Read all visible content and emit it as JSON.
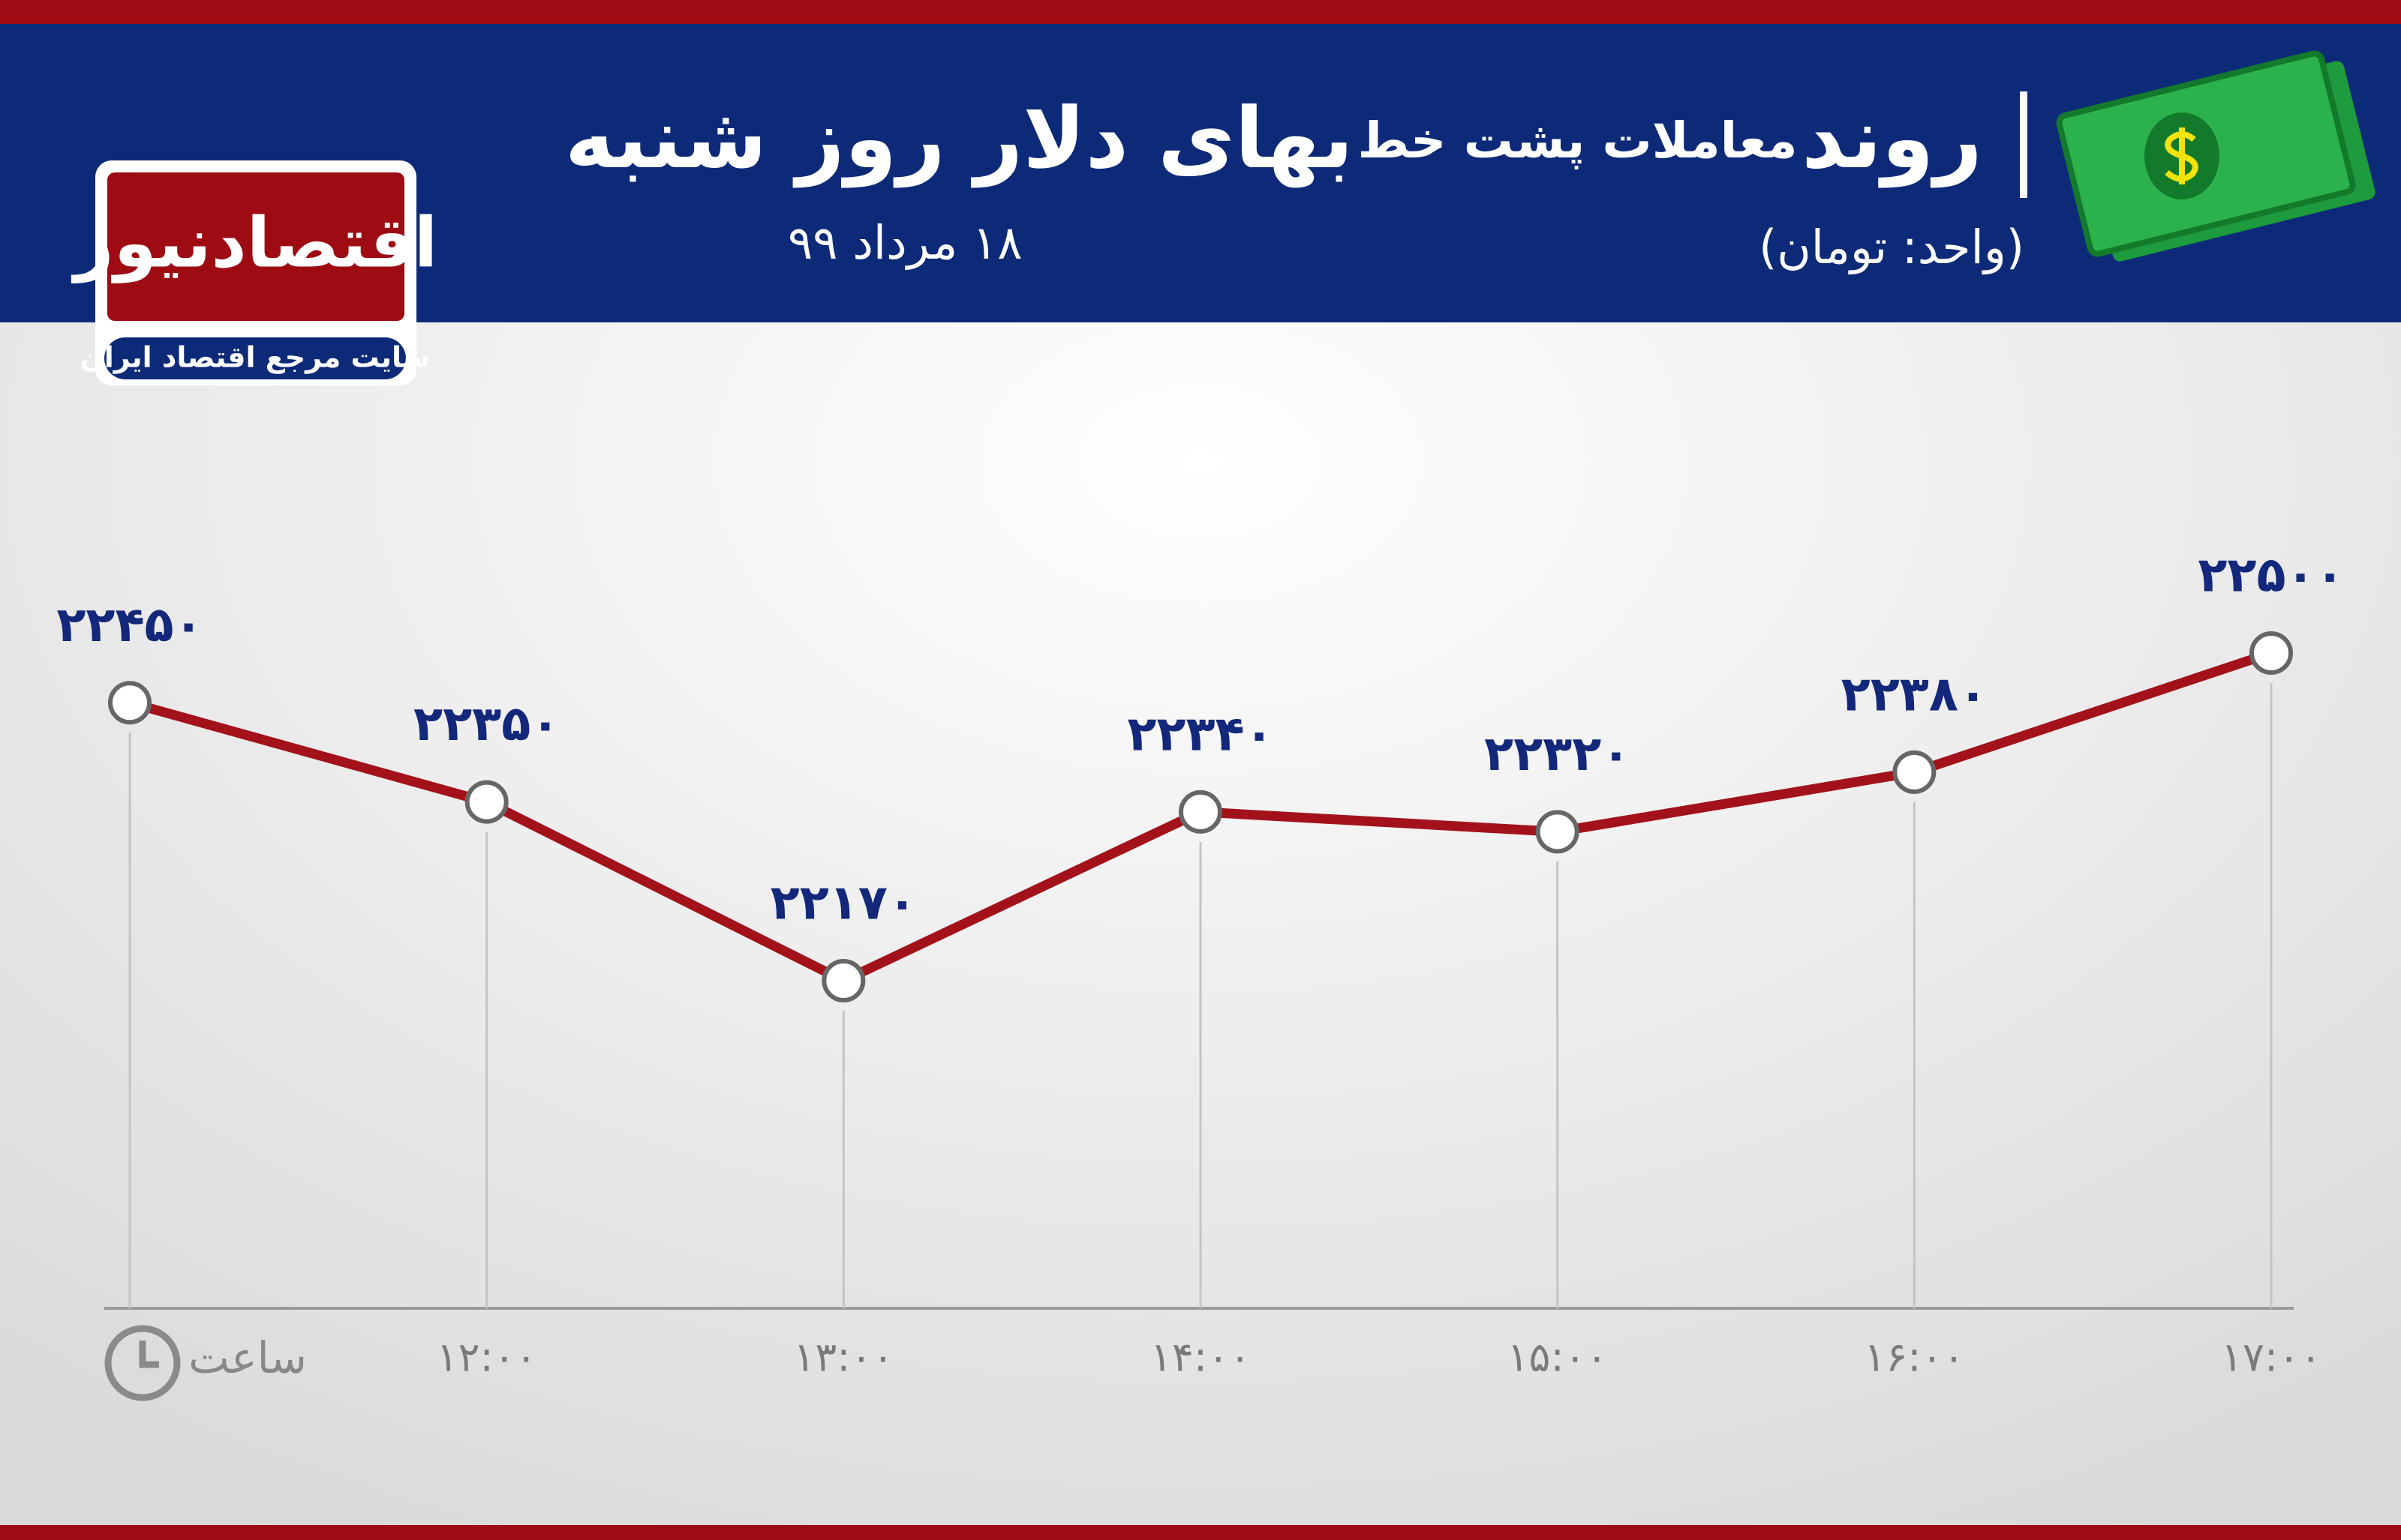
{
  "chart_data": {
    "type": "line",
    "title": [
      "روند",
      "معاملات پشت خط",
      "بهای دلار روز شنبه"
    ],
    "subtitle": "۱۸ مرداد ۹۹",
    "unit": "(واحد: تومان)",
    "logo": {
      "name": "اقتصادنیوز",
      "tagline": "سایت مرجع اقتصاد ایران"
    },
    "x_label": "ساعت",
    "categories": [
      null,
      "۱۲:۰۰",
      "۱۳:۰۰",
      "۱۴:۰۰",
      "۱۵:۰۰",
      "۱۶:۰۰",
      "۱۷:۰۰"
    ],
    "values": [
      22450,
      22350,
      22170,
      22340,
      22320,
      22380,
      22500
    ],
    "value_labels": [
      "۲۲۴۵۰",
      "۲۲۳۵۰",
      "۲۲۱۷۰",
      "۲۲۳۴۰",
      "۲۲۳۲۰",
      "۲۲۳۸۰",
      "۲۲۵۰۰"
    ],
    "color": "#a3111b"
  }
}
